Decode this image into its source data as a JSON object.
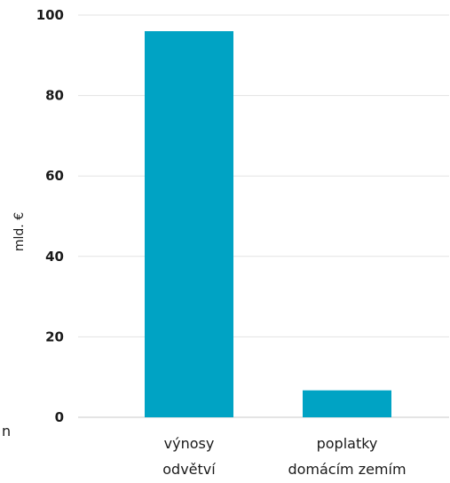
{
  "chart_data": {
    "type": "bar",
    "categories": [
      [
        "výnosy",
        "odvětví"
      ],
      [
        "poplatky",
        "domácím zemím"
      ]
    ],
    "values": [
      96,
      6.7
    ],
    "ylabel": "mld. €",
    "xlabel": "",
    "ylim": [
      0,
      100
    ],
    "yticks": [
      "0",
      "20",
      "40",
      "60",
      "80",
      "100"
    ],
    "grid": true,
    "bar_color": "#00a3c4",
    "edge_fragment": "n"
  }
}
